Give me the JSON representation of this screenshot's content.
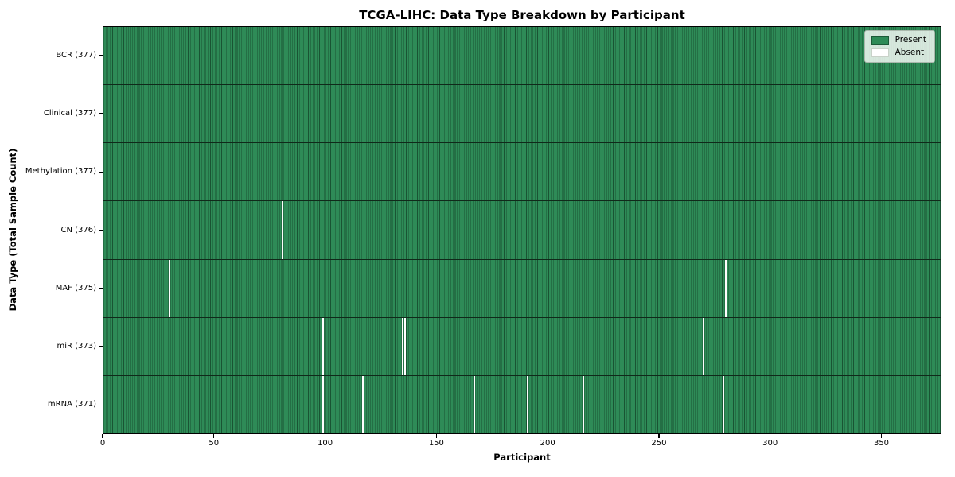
{
  "chart_data": {
    "type": "heatmap",
    "title": "TCGA-LIHC: Data Type Breakdown by Participant",
    "xlabel": "Participant",
    "ylabel": "Data Type (Total Sample Count)",
    "xlim": [
      0,
      377
    ],
    "n_participants": 377,
    "x_ticks": [
      0,
      50,
      100,
      150,
      200,
      250,
      300,
      350
    ],
    "grid": false,
    "legend_position": "upper right",
    "colors": {
      "present": "#2E8B57",
      "absent": "#FFFFFF",
      "cell_edge": "#10291A",
      "legend_background": "#FAFCFA",
      "legend_border": "#A9B8AC"
    },
    "legend": [
      {
        "label": "Present",
        "type": "present"
      },
      {
        "label": "Absent",
        "type": "absent"
      }
    ],
    "rows": [
      {
        "label": "BCR (377)",
        "data_type": "BCR",
        "total_samples": 377,
        "absent_participants": []
      },
      {
        "label": "Clinical (377)",
        "data_type": "Clinical",
        "total_samples": 377,
        "absent_participants": []
      },
      {
        "label": "Methylation (377)",
        "data_type": "Methylation",
        "total_samples": 377,
        "absent_participants": []
      },
      {
        "label": "CN (376)",
        "data_type": "CN",
        "total_samples": 376,
        "absent_participants": [
          80
        ]
      },
      {
        "label": "MAF (375)",
        "data_type": "MAF",
        "total_samples": 375,
        "absent_participants": [
          29,
          279
        ]
      },
      {
        "label": "miR (373)",
        "data_type": "miR",
        "total_samples": 373,
        "absent_participants": [
          98,
          134,
          135,
          269
        ]
      },
      {
        "label": "mRNA (371)",
        "data_type": "mRNA",
        "total_samples": 371,
        "absent_participants": [
          98,
          116,
          166,
          190,
          215,
          278
        ]
      }
    ]
  }
}
